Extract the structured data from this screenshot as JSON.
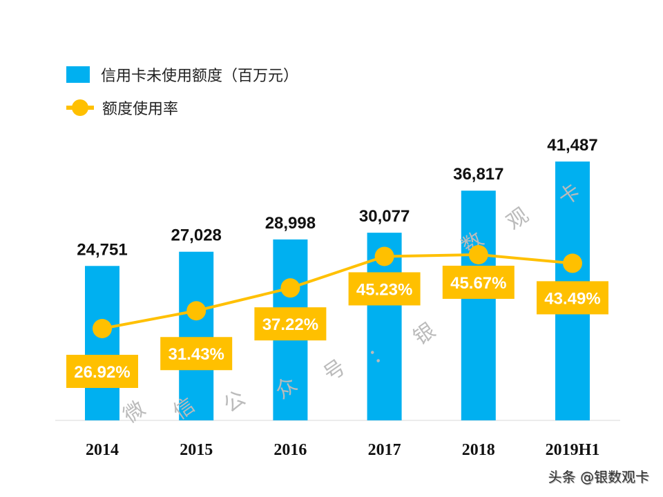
{
  "chart_data": {
    "type": "bar+line",
    "categories": [
      "2014",
      "2015",
      "2016",
      "2017",
      "2018",
      "2019H1"
    ],
    "series": [
      {
        "name": "信用卡未使用额度（百万元）",
        "type": "bar",
        "color": "#00B0F0",
        "values": [
          24751,
          27028,
          28998,
          30077,
          36817,
          41487
        ],
        "labels": [
          "24,751",
          "27,028",
          "28,998",
          "30,077",
          "36,817",
          "41,487"
        ]
      },
      {
        "name": "额度使用率",
        "type": "line",
        "color": "#FFC000",
        "values": [
          26.92,
          31.43,
          37.22,
          45.23,
          45.67,
          43.49
        ],
        "labels": [
          "26.92%",
          "31.43%",
          "37.22%",
          "45.23%",
          "45.67%",
          "43.49%"
        ]
      }
    ],
    "legend_position": "top-left",
    "grid": false
  },
  "watermark": "微信公众号：银数观卡",
  "credit": "头条 @银数观卡"
}
